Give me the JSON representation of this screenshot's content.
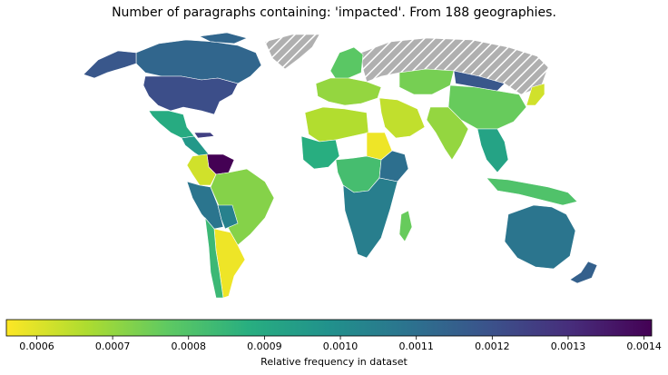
{
  "title": "Number of paragraphs containing: 'impacted'. From 188 geographies.",
  "colorbar": {
    "label": "Relative frequency in dataset",
    "min": 0.00056,
    "max": 0.00141,
    "ticks": [
      "0.0006",
      "0.0007",
      "0.0008",
      "0.0009",
      "0.0010",
      "0.0011",
      "0.0012",
      "0.0013",
      "0.0014"
    ],
    "tick_values": [
      0.0006,
      0.0007,
      0.0008,
      0.0009,
      0.001,
      0.0011,
      0.0012,
      0.0013,
      0.0014
    ],
    "colormap": "viridis_r"
  },
  "colors": {
    "no_data_fill": "#b0b0b0",
    "no_data_hatch": "#ffffff",
    "border": "#ffffff"
  },
  "regions": [
    {
      "name": "Canada",
      "value": 0.00113
    },
    {
      "name": "Alaska",
      "value": 0.00118
    },
    {
      "name": "United States",
      "value": 0.00121
    },
    {
      "name": "Mexico",
      "value": 0.00089
    },
    {
      "name": "Central America",
      "value": 0.00096
    },
    {
      "name": "Cuba",
      "value": 0.00125
    },
    {
      "name": "Venezuela",
      "value": 0.00141
    },
    {
      "name": "Colombia",
      "value": 0.00062
    },
    {
      "name": "Ecuador/Peru",
      "value": 0.00108
    },
    {
      "name": "Brazil",
      "value": 0.00072
    },
    {
      "name": "Bolivia",
      "value": 0.00104
    },
    {
      "name": "Argentina",
      "value": 0.00058
    },
    {
      "name": "Chile",
      "value": 0.00084
    },
    {
      "name": "Greenland",
      "value": null
    },
    {
      "name": "Russia",
      "value": null
    },
    {
      "name": "Scandinavia",
      "value": 0.00078
    },
    {
      "name": "Europe",
      "value": 0.0007
    },
    {
      "name": "North Africa",
      "value": 0.00066
    },
    {
      "name": "Sudan",
      "value": 0.00058
    },
    {
      "name": "West Africa",
      "value": 0.00088
    },
    {
      "name": "Central Africa",
      "value": 0.00082
    },
    {
      "name": "East Africa",
      "value": 0.0011
    },
    {
      "name": "Southern Africa",
      "value": 0.00105
    },
    {
      "name": "Madagascar",
      "value": 0.00076
    },
    {
      "name": "Middle East",
      "value": 0.00064
    },
    {
      "name": "Kazakhstan",
      "value": 0.00074
    },
    {
      "name": "China",
      "value": 0.00076
    },
    {
      "name": "Mongolia",
      "value": 0.00118
    },
    {
      "name": "India",
      "value": 0.0007
    },
    {
      "name": "Southeast Asia",
      "value": 0.00092
    },
    {
      "name": "Japan",
      "value": 0.00062
    },
    {
      "name": "Indonesia",
      "value": 0.0008
    },
    {
      "name": "Australia",
      "value": 0.00108
    },
    {
      "name": "New Zealand",
      "value": 0.00115
    }
  ]
}
